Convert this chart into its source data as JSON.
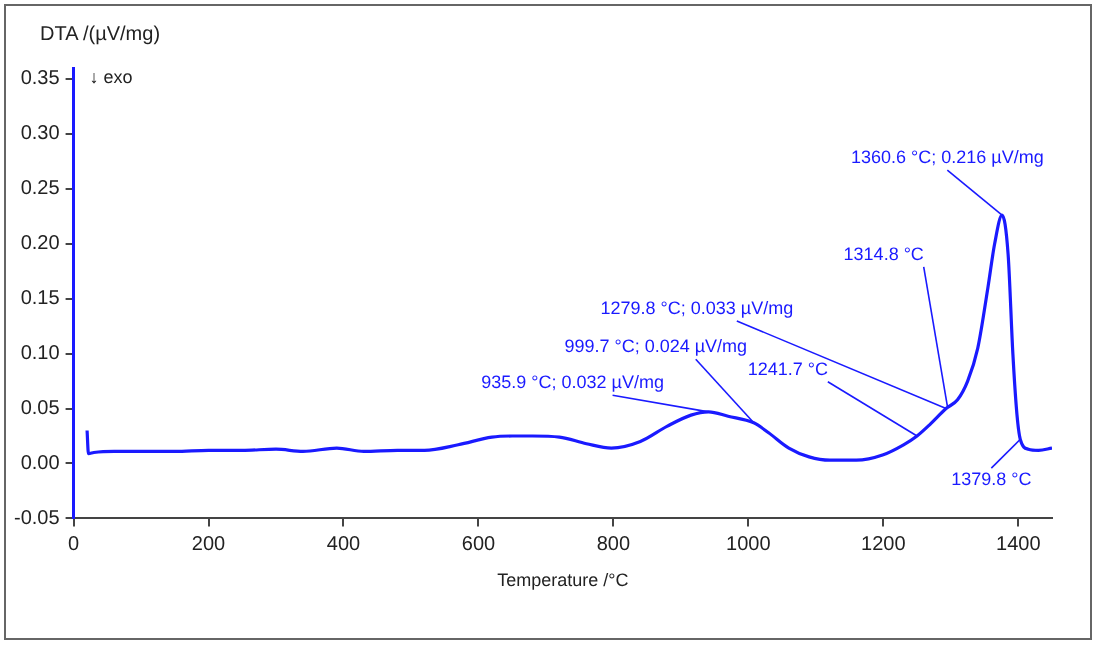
{
  "chart_data": {
    "type": "line",
    "xlabel": "Temperature /°C",
    "ylabel": "DTA /(µV/mg)",
    "xlim": [
      0,
      1450
    ],
    "xticks": [
      0,
      200,
      400,
      600,
      800,
      1000,
      1200,
      1400
    ],
    "ylim": [
      -0.05,
      0.36
    ],
    "yticks": [
      -0.05,
      "0.00",
      0.05,
      "0.10",
      0.15,
      "0.20",
      0.25,
      "0.30",
      0.35
    ],
    "grid": false,
    "legend": false,
    "marker": "none",
    "line_style": "solid",
    "series": [
      {
        "color": "#1a1aff",
        "x": [
          20,
          22,
          30,
          60,
          100,
          150,
          200,
          250,
          300,
          340,
          390,
          430,
          480,
          520,
          570,
          620,
          650,
          680,
          720,
          760,
          797,
          840,
          880,
          915,
          941,
          970,
          1008,
          1030,
          1060,
          1090,
          1121,
          1160,
          1200,
          1230,
          1250,
          1270,
          1293,
          1310,
          1325,
          1340,
          1355,
          1365,
          1376,
          1385,
          1392,
          1398,
          1403,
          1415,
          1430,
          1450
        ],
        "values": [
          0.03,
          0.009,
          0.01,
          0.011,
          0.011,
          0.011,
          0.012,
          0.012,
          0.013,
          0.011,
          0.014,
          0.011,
          0.012,
          0.012,
          0.017,
          0.024,
          0.025,
          0.025,
          0.024,
          0.018,
          0.014,
          0.02,
          0.034,
          0.044,
          0.047,
          0.043,
          0.037,
          0.028,
          0.014,
          0.006,
          0.003,
          0.003,
          0.008,
          0.017,
          0.025,
          0.036,
          0.05,
          0.058,
          0.075,
          0.105,
          0.16,
          0.2,
          0.226,
          0.19,
          0.1,
          0.045,
          0.022,
          0.013,
          0.012,
          0.014
        ]
      }
    ],
    "annotations": [
      "↓ exo",
      {
        "text": "935.9 °C; 0.032 µV/mg",
        "x": 941,
        "y": 0.047
      },
      {
        "text": "999.7 °C; 0.024 µV/mg",
        "x": 1008,
        "y": 0.037
      },
      {
        "text": "1241.7 °C",
        "x": 1250,
        "y": 0.025
      },
      {
        "text": "1279.8 °C; 0.033 µV/mg",
        "x": 1293,
        "y": 0.05
      },
      {
        "text": "1314.8 °C",
        "x": 1295,
        "y": 0.052
      },
      {
        "text": "1360.6 °C; 0.216 µV/mg",
        "x": 1376,
        "y": 0.226
      },
      {
        "text": "1379.8 °C",
        "x": 1403,
        "y": 0.022
      }
    ]
  }
}
